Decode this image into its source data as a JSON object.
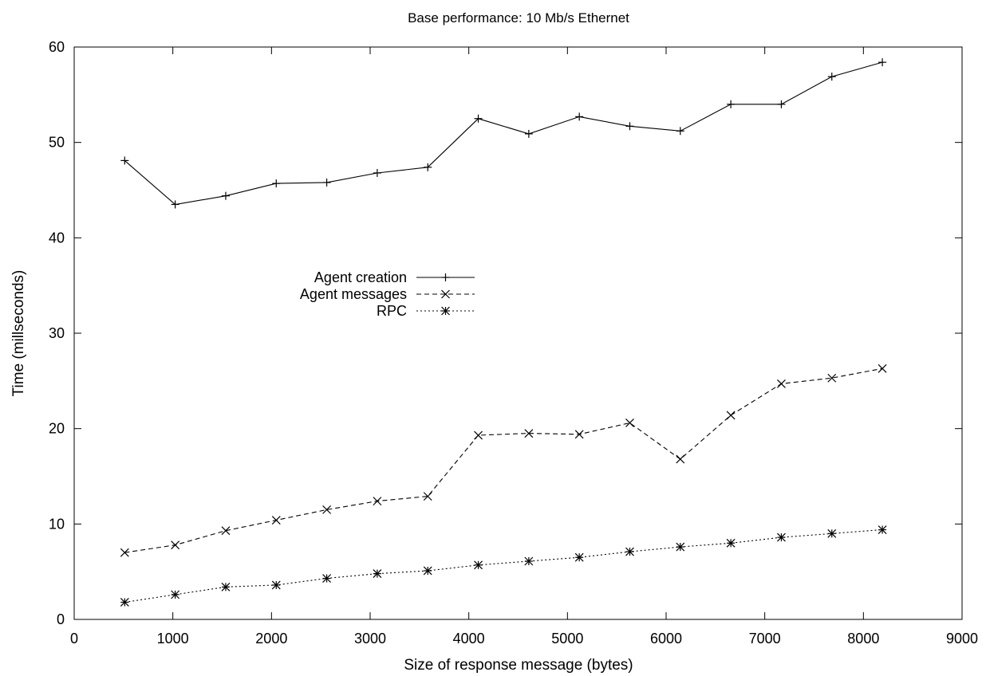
{
  "chart_data": {
    "type": "line",
    "title": "Base performance: 10 Mb/s Ethernet",
    "xlabel": "Size of response message (bytes)",
    "ylabel": "Time (millseconds)",
    "xlim": [
      0,
      9000
    ],
    "ylim": [
      0,
      60
    ],
    "xticks": [
      0,
      1000,
      2000,
      3000,
      4000,
      5000,
      6000,
      7000,
      8000,
      9000
    ],
    "yticks": [
      0,
      10,
      20,
      30,
      40,
      50,
      60
    ],
    "grid": false,
    "legend_position": "center-left",
    "x": [
      512,
      1024,
      1536,
      2048,
      2560,
      3072,
      3584,
      4096,
      4608,
      5120,
      5632,
      6144,
      6656,
      7168,
      7680,
      8192
    ],
    "series": [
      {
        "name": "Agent creation",
        "line_style": "solid",
        "marker": "plus",
        "color": "#000000",
        "values": [
          48.1,
          43.5,
          44.4,
          45.7,
          45.8,
          46.8,
          47.4,
          52.5,
          50.9,
          52.7,
          51.7,
          51.2,
          54.0,
          54.0,
          56.9,
          58.4
        ]
      },
      {
        "name": "Agent messages",
        "line_style": "dashed",
        "marker": "cross",
        "color": "#000000",
        "values": [
          7.0,
          7.8,
          9.3,
          10.4,
          11.5,
          12.4,
          12.9,
          19.3,
          19.5,
          19.4,
          20.6,
          16.8,
          21.4,
          24.7,
          25.3,
          26.3
        ]
      },
      {
        "name": "RPC",
        "line_style": "dotted",
        "marker": "star",
        "color": "#000000",
        "values": [
          1.8,
          2.6,
          3.4,
          3.6,
          4.3,
          4.8,
          5.1,
          5.7,
          6.1,
          6.5,
          7.1,
          7.6,
          8.0,
          8.6,
          9.0,
          9.4
        ]
      }
    ]
  }
}
